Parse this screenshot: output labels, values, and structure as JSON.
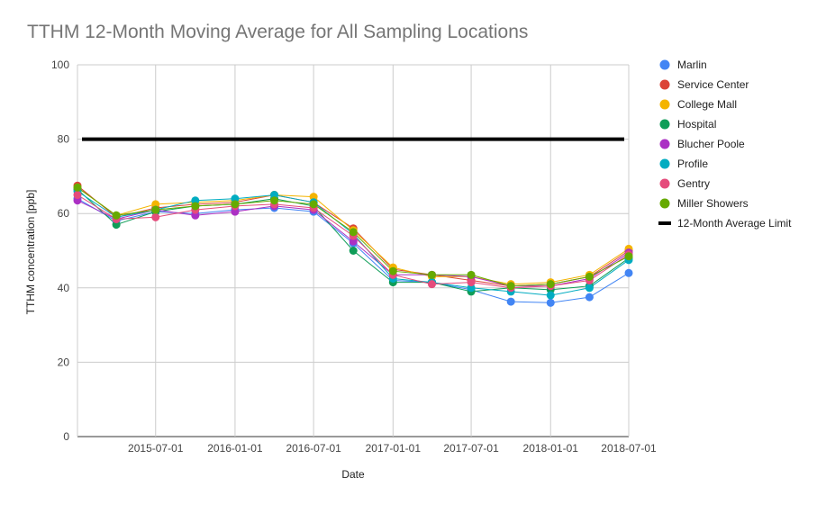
{
  "chart_data": {
    "type": "line",
    "title": "TTHM 12-Month Moving Average for All Sampling Locations",
    "xlabel": "Date",
    "ylabel": "TTHM concentration [ppb]",
    "ylim": [
      0,
      100
    ],
    "yticks": [
      0,
      20,
      40,
      60,
      80,
      100
    ],
    "xlim": [
      "2015-01-01",
      "2018-07-01"
    ],
    "xticks": [
      "2015-07-01",
      "2016-01-01",
      "2016-07-01",
      "2017-01-01",
      "2017-07-01",
      "2018-01-01",
      "2018-07-01"
    ],
    "x": [
      "2015-01-01",
      "2015-04-01",
      "2015-07-01",
      "2015-10-01",
      "2016-01-01",
      "2016-04-01",
      "2016-07-01",
      "2016-10-01",
      "2017-01-01",
      "2017-04-01",
      "2017-07-01",
      "2017-10-01",
      "2018-01-01",
      "2018-04-01",
      "2018-07-01"
    ],
    "series": [
      {
        "name": "Marlin",
        "color": "#4285f4",
        "values": [
          64,
          58,
          60.5,
          60,
          61,
          61.5,
          60.5,
          52,
          42,
          41.5,
          39.5,
          36.3,
          36,
          37.5,
          44
        ]
      },
      {
        "name": "Service Center",
        "color": "#db4437",
        "values": [
          67.5,
          59,
          61.5,
          62.5,
          63,
          65,
          63,
          56,
          45,
          43.5,
          42,
          40.5,
          41,
          43,
          50
        ]
      },
      {
        "name": "College Mall",
        "color": "#f4b400",
        "values": [
          67,
          59.5,
          62.5,
          63,
          63.5,
          65,
          64.5,
          55.5,
          45.5,
          43,
          43,
          41,
          41.5,
          43.5,
          50.5
        ]
      },
      {
        "name": "Hospital",
        "color": "#0f9d58",
        "values": [
          66.5,
          57,
          60.5,
          62,
          62.5,
          64,
          62,
          50,
          41.5,
          41.5,
          39,
          40,
          39.5,
          40.5,
          48
        ]
      },
      {
        "name": "Blucher Poole",
        "color": "#ab30c4",
        "values": [
          63.5,
          58.5,
          61,
          59.5,
          60.5,
          62,
          61,
          52.5,
          43.5,
          43.5,
          43,
          40.5,
          40.5,
          42.5,
          49.5
        ]
      },
      {
        "name": "Profile",
        "color": "#00acc1",
        "values": [
          66,
          59,
          61,
          63.5,
          64,
          65,
          63,
          54.5,
          42.5,
          41.5,
          40,
          39,
          38,
          40,
          47.5
        ]
      },
      {
        "name": "Gentry",
        "color": "#e54c7c",
        "values": [
          65,
          58.5,
          59,
          61,
          62,
          62.5,
          61.5,
          54,
          43.5,
          41,
          41.5,
          40,
          40.5,
          42,
          49
        ]
      },
      {
        "name": "Miller Showers",
        "color": "#66aa00",
        "values": [
          67,
          59.5,
          61,
          62,
          62.5,
          63.5,
          62.5,
          55,
          44.5,
          43.5,
          43.5,
          40.5,
          41,
          43,
          48.5
        ]
      }
    ],
    "reference_line": {
      "name": "12-Month Average Limit",
      "value": 80,
      "color": "#000000"
    }
  }
}
